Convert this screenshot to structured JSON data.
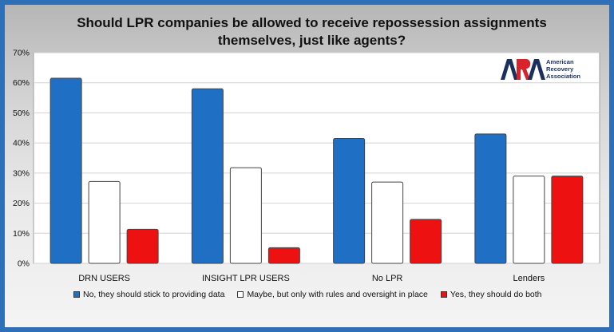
{
  "chart_data": {
    "type": "bar",
    "title_lines": [
      "Should LPR companies be allowed to receive repossession assignments",
      "themselves, just like agents?"
    ],
    "categories": [
      "DRN USERS",
      "INSIGHT LPR USERS",
      "No LPR",
      "Lenders"
    ],
    "series": [
      {
        "name": "No, they should stick to providing data",
        "color": "#1f6fc4",
        "values": [
          61.5,
          58,
          41.5,
          43
        ]
      },
      {
        "name": "Maybe, but only with rules and oversight in place",
        "color": "#ffffff",
        "values": [
          27.2,
          31.8,
          27,
          29
        ]
      },
      {
        "name": "Yes, they should do both",
        "color": "#ee1111",
        "values": [
          11.3,
          5.2,
          14.6,
          29
        ]
      }
    ],
    "ylim": [
      0,
      70
    ],
    "yticks": [
      0,
      10,
      20,
      30,
      40,
      50,
      60,
      70
    ],
    "ytick_format": "percent",
    "grid": true,
    "legend_position": "bottom"
  },
  "logo": {
    "mark": "ARA",
    "lines": [
      "American",
      "Recovery",
      "Association"
    ]
  }
}
